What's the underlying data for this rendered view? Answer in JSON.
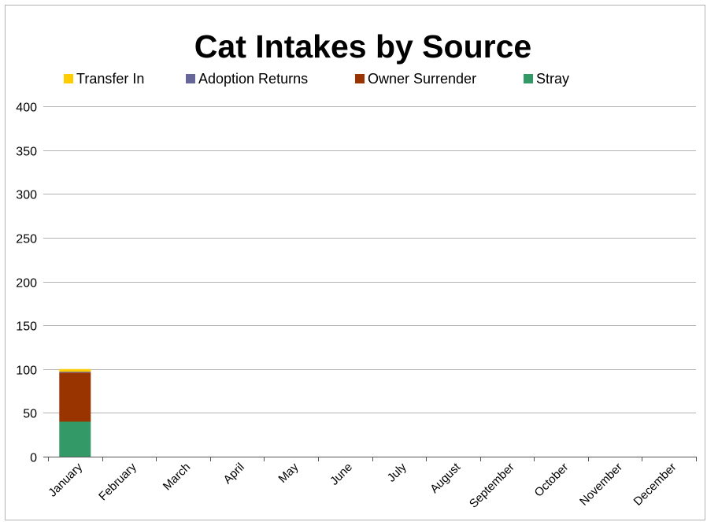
{
  "chart_data": {
    "type": "bar",
    "stacked": true,
    "title": "Cat Intakes by Source",
    "xlabel": "",
    "ylabel": "",
    "categories": [
      "January",
      "February",
      "March",
      "April",
      "May",
      "June",
      "July",
      "August",
      "September",
      "October",
      "November",
      "December"
    ],
    "ylim": [
      0,
      400
    ],
    "yticks": [
      0,
      50,
      100,
      150,
      200,
      250,
      300,
      350,
      400
    ],
    "grid": true,
    "legend_position": "top",
    "series": [
      {
        "name": "Stray",
        "color": "#339966",
        "values": [
          40,
          0,
          0,
          0,
          0,
          0,
          0,
          0,
          0,
          0,
          0,
          0
        ]
      },
      {
        "name": "Owner Surrender",
        "color": "#993300",
        "values": [
          56,
          0,
          0,
          0,
          0,
          0,
          0,
          0,
          0,
          0,
          0,
          0
        ]
      },
      {
        "name": "Adoption Returns",
        "color": "#666699",
        "values": [
          1,
          0,
          0,
          0,
          0,
          0,
          0,
          0,
          0,
          0,
          0,
          0
        ]
      },
      {
        "name": "Transfer In",
        "color": "#ffcc00",
        "values": [
          3,
          0,
          0,
          0,
          0,
          0,
          0,
          0,
          0,
          0,
          0,
          0
        ]
      }
    ],
    "legend_order": [
      "Transfer In",
      "Adoption Returns",
      "Owner Surrender",
      "Stray"
    ]
  }
}
